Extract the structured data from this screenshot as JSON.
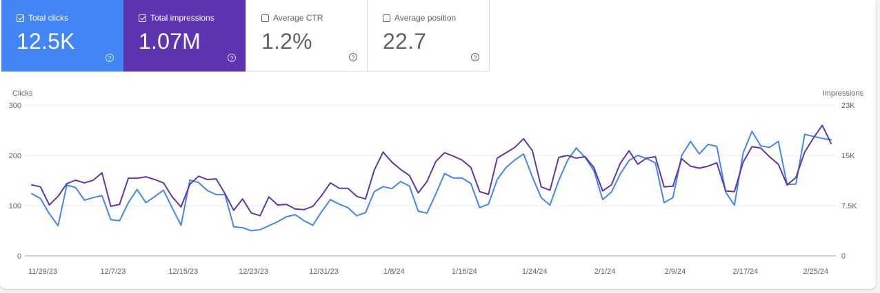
{
  "cards": [
    {
      "label": "Total clicks",
      "value": "12.5K",
      "checked": true,
      "bg": "#4285f4",
      "fg": "#ffffff"
    },
    {
      "label": "Total impressions",
      "value": "1.07M",
      "checked": true,
      "bg": "#5e35b1",
      "fg": "#ffffff"
    },
    {
      "label": "Average CTR",
      "value": "1.2%",
      "checked": false,
      "bg": "#ffffff",
      "fg": "#5f6368"
    },
    {
      "label": "Average position",
      "value": "22.7",
      "checked": false,
      "bg": "#ffffff",
      "fg": "#5f6368"
    }
  ],
  "help_glyph": "?",
  "chart_data": {
    "type": "line",
    "left_axis": {
      "label": "Clicks",
      "max_label": "300",
      "ticks": [
        "0",
        "100",
        "200",
        "300"
      ],
      "range": [
        0,
        300
      ]
    },
    "right_axis": {
      "label": "Impressions",
      "max_label": "23K",
      "ticks": [
        "0",
        "7.5K",
        "15K",
        "23K"
      ],
      "range": [
        0,
        22500
      ]
    },
    "x_ticks": [
      "11/29/23",
      "12/7/23",
      "12/15/23",
      "12/23/23",
      "12/31/23",
      "1/8/24",
      "1/16/24",
      "1/24/24",
      "2/1/24",
      "2/9/24",
      "2/17/24",
      "2/25/24"
    ],
    "grid": true,
    "series": [
      {
        "axis": "left",
        "color": "#4285f4",
        "values": [
          124,
          114,
          84,
          60,
          141,
          136,
          111,
          116,
          120,
          72,
          70,
          106,
          132,
          106,
          118,
          131,
          95,
          61,
          151,
          146,
          130,
          122,
          122,
          58,
          56,
          50,
          52,
          60,
          68,
          78,
          82,
          70,
          61,
          88,
          112,
          103,
          96,
          80,
          86,
          128,
          138,
          134,
          148,
          139,
          89,
          85,
          123,
          164,
          155,
          155,
          144,
          96,
          103,
          152,
          176,
          191,
          203,
          157,
          116,
          101,
          150,
          190,
          215,
          196,
          170,
          112,
          127,
          163,
          190,
          200,
          194,
          185,
          106,
          116,
          200,
          228,
          203,
          222,
          218,
          127,
          101,
          205,
          248,
          219,
          216,
          228,
          142,
          143,
          242,
          238,
          234,
          231
        ]
      },
      {
        "axis": "right",
        "color": "#5e35b1",
        "values": [
          10600,
          10300,
          7600,
          8900,
          10800,
          11300,
          10900,
          11300,
          12400,
          7400,
          7700,
          11600,
          11600,
          11800,
          11400,
          10900,
          8800,
          7300,
          10700,
          11900,
          11400,
          11500,
          9300,
          6800,
          8500,
          6400,
          6000,
          8800,
          7600,
          7700,
          7000,
          6900,
          7400,
          9000,
          10900,
          10100,
          10100,
          8900,
          8500,
          12800,
          15500,
          14000,
          12900,
          12000,
          9400,
          11100,
          14100,
          15400,
          14900,
          14300,
          13200,
          9600,
          9200,
          14600,
          15400,
          16200,
          17500,
          15700,
          10300,
          9800,
          14700,
          15000,
          14600,
          14800,
          13200,
          9700,
          10600,
          13800,
          15700,
          13700,
          14600,
          14800,
          10300,
          10400,
          14500,
          13400,
          13100,
          13400,
          13900,
          9700,
          9600,
          14000,
          16300,
          16100,
          14800,
          13700,
          10600,
          11700,
          15500,
          17600,
          19500,
          16800
        ]
      }
    ]
  }
}
